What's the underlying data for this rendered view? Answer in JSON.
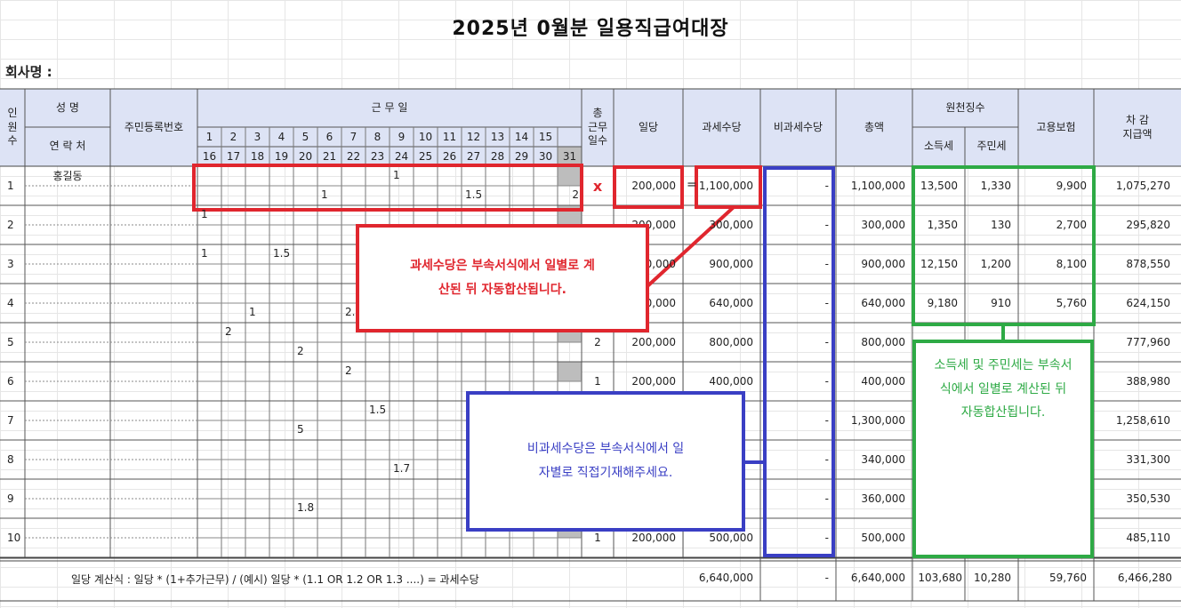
{
  "title": "2025년 0월분 일용직급여대장",
  "company_label": "회사명 :",
  "headers": {
    "index": "인\n원\n수",
    "name": "성   명",
    "contact": "연 락 처",
    "rrn": "주민등록번호",
    "workdays": "근 무 일",
    "days_row1": [
      "1",
      "2",
      "3",
      "4",
      "5",
      "6",
      "7",
      "8",
      "9",
      "10",
      "11",
      "12",
      "13",
      "14",
      "15"
    ],
    "days_row2": [
      "16",
      "17",
      "18",
      "19",
      "20",
      "21",
      "22",
      "23",
      "24",
      "25",
      "26",
      "27",
      "28",
      "29",
      "30",
      "31"
    ],
    "total_days": "총\n근무\n일수",
    "daily_wage": "일당",
    "taxable": "과세수당",
    "nontaxable": "비과세수당",
    "total": "총액",
    "withholding": "원천징수",
    "income_tax": "소득세",
    "resident_tax": "주민세",
    "employment_ins": "고용보험",
    "net_pay": "차 감\n지급액"
  },
  "rows": [
    {
      "idx": "1",
      "name": "홍길동",
      "mark": "x",
      "daily": "200,000",
      "taxable": "1,100,000",
      "nontax": "-",
      "total": "1,100,000",
      "income_tax": "13,500",
      "resident_tax": "1,330",
      "emp_ins": "9,900",
      "net": "1,075,270"
    },
    {
      "idx": "2",
      "name": "",
      "mark": "",
      "daily": "200,000",
      "taxable": "300,000",
      "nontax": "-",
      "total": "300,000",
      "income_tax": "1,350",
      "resident_tax": "130",
      "emp_ins": "2,700",
      "net": "295,820"
    },
    {
      "idx": "3",
      "name": "",
      "mark": "",
      "daily": "200,000",
      "taxable": "900,000",
      "nontax": "-",
      "total": "900,000",
      "income_tax": "12,150",
      "resident_tax": "1,200",
      "emp_ins": "8,100",
      "net": "878,550"
    },
    {
      "idx": "4",
      "name": "",
      "mark": "",
      "daily": "200,000",
      "taxable": "640,000",
      "nontax": "-",
      "total": "640,000",
      "income_tax": "9,180",
      "resident_tax": "910",
      "emp_ins": "5,760",
      "net": "624,150"
    },
    {
      "idx": "5",
      "name": "",
      "mark": "2",
      "daily": "200,000",
      "taxable": "800,000",
      "nontax": "-",
      "total": "800,000",
      "income_tax": "",
      "resident_tax": "",
      "emp_ins": "",
      "net": "777,960"
    },
    {
      "idx": "6",
      "name": "",
      "mark": "1",
      "daily": "200,000",
      "taxable": "400,000",
      "nontax": "-",
      "total": "400,000",
      "income_tax": "",
      "resident_tax": "",
      "emp_ins": "",
      "net": "388,980"
    },
    {
      "idx": "7",
      "name": "",
      "mark": "",
      "daily": "",
      "taxable": "",
      "nontax": "-",
      "total": "1,300,000",
      "income_tax": "",
      "resident_tax": "",
      "emp_ins": "",
      "net": "1,258,610"
    },
    {
      "idx": "8",
      "name": "",
      "mark": "",
      "daily": "",
      "taxable": "",
      "nontax": "-",
      "total": "340,000",
      "income_tax": "",
      "resident_tax": "",
      "emp_ins": "",
      "net": "331,300"
    },
    {
      "idx": "9",
      "name": "",
      "mark": "",
      "daily": "",
      "taxable": "",
      "nontax": "-",
      "total": "360,000",
      "income_tax": "",
      "resident_tax": "",
      "emp_ins": "",
      "net": "350,530"
    },
    {
      "idx": "10",
      "name": "",
      "mark": "1",
      "daily": "200,000",
      "taxable": "500,000",
      "nontax": "-",
      "total": "500,000",
      "income_tax": "",
      "resident_tax": "",
      "emp_ins": "",
      "net": "485,110"
    }
  ],
  "day_marks": [
    {
      "row": 0,
      "line": 0,
      "day": "9",
      "value": "1"
    },
    {
      "row": 0,
      "line": 1,
      "day": "21",
      "value": "1"
    },
    {
      "row": 0,
      "line": 1,
      "day": "27",
      "value": "1.5"
    },
    {
      "row": 0,
      "line": 1,
      "day": "31",
      "value": "2"
    },
    {
      "row": 1,
      "line": 0,
      "day": "1",
      "value": "1"
    },
    {
      "row": 2,
      "line": 0,
      "day": "1",
      "value": "1"
    },
    {
      "row": 2,
      "line": 0,
      "day": "4",
      "value": "1.5"
    },
    {
      "row": 3,
      "line": 1,
      "day": "18",
      "value": "1"
    },
    {
      "row": 3,
      "line": 1,
      "day": "22",
      "value": "2."
    },
    {
      "row": 4,
      "line": 0,
      "day": "2",
      "value": "2"
    },
    {
      "row": 4,
      "line": 1,
      "day": "20",
      "value": "2"
    },
    {
      "row": 5,
      "line": 0,
      "day": "7",
      "value": "2"
    },
    {
      "row": 6,
      "line": 0,
      "day": "8",
      "value": "1.5"
    },
    {
      "row": 6,
      "line": 1,
      "day": "20",
      "value": "5"
    },
    {
      "row": 7,
      "line": 1,
      "day": "24",
      "value": "1.7"
    },
    {
      "row": 8,
      "line": 1,
      "day": "20",
      "value": "1.8"
    }
  ],
  "footer": {
    "formula": "일당 계산식 : 일당 * (1+추가근무) / (예시) 일당 * (1.1 OR 1.2 OR 1.3 ....) = 과세수당",
    "taxable": "6,640,000",
    "nontax": "-",
    "total": "6,640,000",
    "income_tax": "103,680",
    "resident_tax": "10,280",
    "emp_ins": "59,760",
    "net": "6,466,280"
  },
  "callouts": {
    "red": "과세수당은 부속서식에서 일별로 계\n산된 뒤 자동합산됩니다.",
    "blue": "비과세수당은 부속서식에서 일\n자별로 직접기재해주세요.",
    "green": "소득세 및 주민세는 부속서\n식에서 일별로 계산된 뒤\n자동합산됩니다."
  },
  "equals_sign": "=",
  "colors": {
    "header_bg": "#dde3f5",
    "red": "#e0262e",
    "blue": "#3a3fc4",
    "green": "#2eaa45",
    "shade": "#bdbdbd"
  }
}
